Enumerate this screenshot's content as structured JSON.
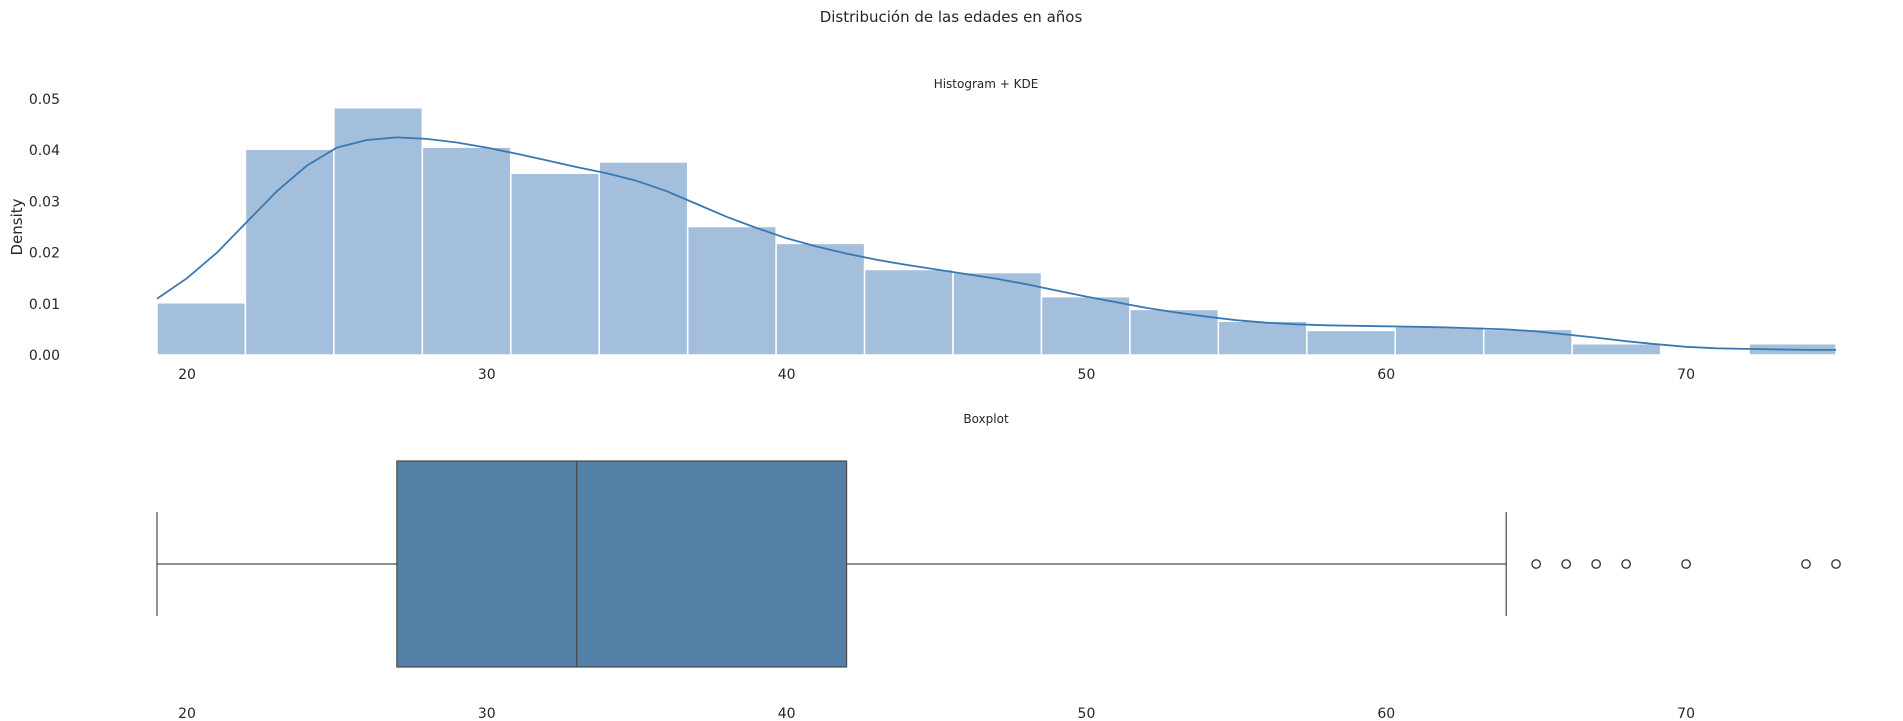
{
  "figure": {
    "suptitle": "Distribución de las edades en años"
  },
  "chart_data": [
    {
      "type": "histogram",
      "title": "Histogram + KDE",
      "xlabel": "",
      "ylabel": "Density",
      "xlim": [
        19,
        75
      ],
      "ylim": [
        0,
        0.05
      ],
      "xticks": [
        20,
        30,
        40,
        50,
        60,
        70
      ],
      "yticks": [
        0.0,
        0.01,
        0.02,
        0.03,
        0.04,
        0.05
      ],
      "ytick_labels": [
        "0.00",
        "0.01",
        "0.02",
        "0.03",
        "0.04",
        "0.05"
      ],
      "bar_color": "#a3bfdb",
      "line_color": "#3a78b2",
      "bins": [
        {
          "start": 19.0,
          "end": 21.95,
          "density": 0.0102
        },
        {
          "start": 21.95,
          "end": 24.9,
          "density": 0.0402
        },
        {
          "start": 24.9,
          "end": 27.85,
          "density": 0.0483
        },
        {
          "start": 27.85,
          "end": 30.8,
          "density": 0.0406
        },
        {
          "start": 30.8,
          "end": 33.75,
          "density": 0.0355
        },
        {
          "start": 33.75,
          "end": 36.7,
          "density": 0.0377
        },
        {
          "start": 36.7,
          "end": 39.65,
          "density": 0.0251
        },
        {
          "start": 39.65,
          "end": 42.6,
          "density": 0.0218
        },
        {
          "start": 42.6,
          "end": 45.55,
          "density": 0.0167
        },
        {
          "start": 45.55,
          "end": 48.5,
          "density": 0.0161
        },
        {
          "start": 48.5,
          "end": 51.45,
          "density": 0.0114
        },
        {
          "start": 51.45,
          "end": 54.4,
          "density": 0.0089
        },
        {
          "start": 54.4,
          "end": 57.35,
          "density": 0.0066
        },
        {
          "start": 57.35,
          "end": 60.3,
          "density": 0.0048
        },
        {
          "start": 60.3,
          "end": 63.25,
          "density": 0.0055
        },
        {
          "start": 63.25,
          "end": 66.2,
          "density": 0.005
        },
        {
          "start": 66.2,
          "end": 69.15,
          "density": 0.0022
        },
        {
          "start": 69.15,
          "end": 72.1,
          "density": 0.0
        },
        {
          "start": 72.1,
          "end": 75.0,
          "density": 0.0022
        }
      ],
      "kde": {
        "x": [
          19,
          20,
          21,
          22,
          23,
          24,
          25,
          26,
          27,
          28,
          29,
          30,
          31,
          32,
          33,
          34,
          35,
          36,
          37,
          38,
          39,
          40,
          41,
          42,
          43,
          44,
          45,
          46,
          47,
          48,
          49,
          50,
          51,
          52,
          53,
          54,
          55,
          56,
          57,
          58,
          59,
          60,
          61,
          62,
          63,
          64,
          65,
          66,
          67,
          68,
          69,
          70,
          71,
          72,
          73,
          74,
          75
        ],
        "y": [
          0.011,
          0.015,
          0.02,
          0.026,
          0.032,
          0.037,
          0.0405,
          0.042,
          0.0425,
          0.0422,
          0.0415,
          0.0405,
          0.0393,
          0.038,
          0.0367,
          0.0355,
          0.034,
          0.032,
          0.0295,
          0.027,
          0.0248,
          0.0228,
          0.0212,
          0.0198,
          0.0186,
          0.0176,
          0.0167,
          0.0158,
          0.0149,
          0.0138,
          0.0126,
          0.0114,
          0.0103,
          0.0092,
          0.0083,
          0.0075,
          0.0068,
          0.0063,
          0.006,
          0.0058,
          0.0057,
          0.0056,
          0.0055,
          0.0054,
          0.0052,
          0.005,
          0.0046,
          0.004,
          0.0034,
          0.0027,
          0.0021,
          0.0016,
          0.0013,
          0.0012,
          0.0011,
          0.001,
          0.001
        ]
      }
    },
    {
      "type": "boxplot",
      "title": "Boxplot",
      "xlabel": "",
      "xlim": [
        19,
        75
      ],
      "xticks": [
        20,
        30,
        40,
        50,
        60,
        70
      ],
      "box_color": "#5381a8",
      "whisker_low": 19,
      "q1": 27,
      "median": 33,
      "q3": 42,
      "whisker_high": 64,
      "outliers": [
        65,
        66,
        67,
        68,
        70,
        74,
        75
      ]
    }
  ]
}
